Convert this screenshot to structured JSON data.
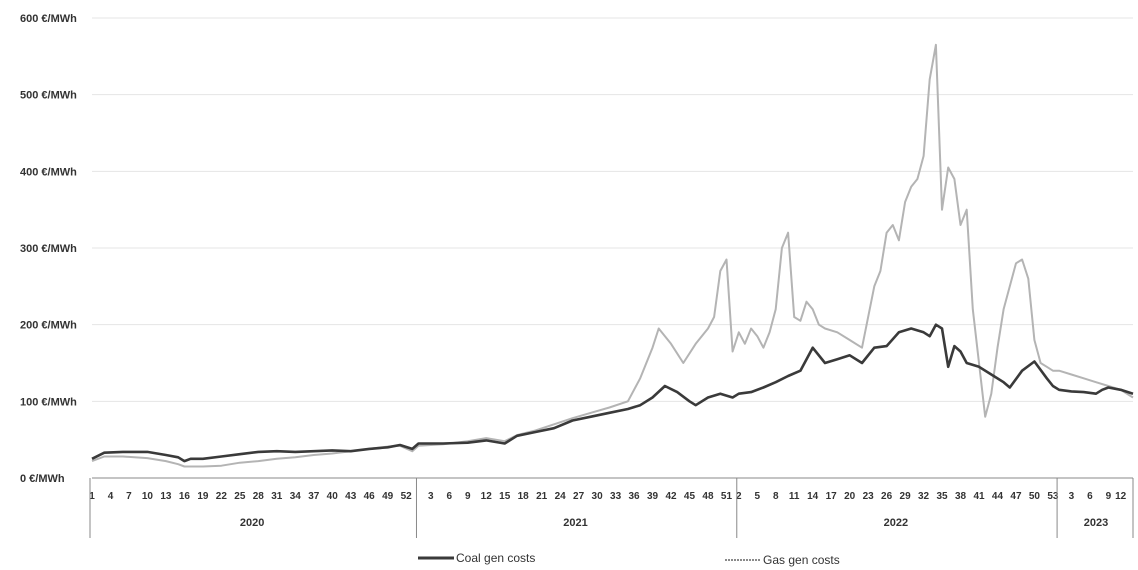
{
  "chart_data": {
    "type": "line",
    "title": "",
    "xlabel": "",
    "ylabel": "",
    "ylim": [
      0,
      600
    ],
    "y_ticks": [
      {
        "value": 0,
        "label": "0 €/MWh"
      },
      {
        "value": 100,
        "label": "100 €/MWh"
      },
      {
        "value": 200,
        "label": "200 €/MWh"
      },
      {
        "value": 300,
        "label": "300 €/MWh"
      },
      {
        "value": 400,
        "label": "400 €/MWh"
      },
      {
        "value": 500,
        "label": "500 €/MWh"
      },
      {
        "value": 600,
        "label": "600 €/MWh"
      }
    ],
    "grid": true,
    "legend_position": "bottom",
    "years": [
      {
        "label": "2020",
        "start": 1,
        "end": 53
      },
      {
        "label": "2021",
        "start": 54,
        "end": 105
      },
      {
        "label": "2022",
        "start": 106,
        "end": 157
      },
      {
        "label": "2023",
        "start": 158,
        "end": 170
      }
    ],
    "x_tick_labels": [
      {
        "x": 1,
        "label": "1"
      },
      {
        "x": 4,
        "label": "4"
      },
      {
        "x": 7,
        "label": "7"
      },
      {
        "x": 10,
        "label": "10"
      },
      {
        "x": 13,
        "label": "13"
      },
      {
        "x": 16,
        "label": "16"
      },
      {
        "x": 19,
        "label": "19"
      },
      {
        "x": 22,
        "label": "22"
      },
      {
        "x": 25,
        "label": "25"
      },
      {
        "x": 28,
        "label": "28"
      },
      {
        "x": 31,
        "label": "31"
      },
      {
        "x": 34,
        "label": "34"
      },
      {
        "x": 37,
        "label": "37"
      },
      {
        "x": 40,
        "label": "40"
      },
      {
        "x": 43,
        "label": "43"
      },
      {
        "x": 46,
        "label": "46"
      },
      {
        "x": 49,
        "label": "49"
      },
      {
        "x": 52,
        "label": "52"
      },
      {
        "x": 56,
        "label": "3"
      },
      {
        "x": 59,
        "label": "6"
      },
      {
        "x": 62,
        "label": "9"
      },
      {
        "x": 65,
        "label": "12"
      },
      {
        "x": 68,
        "label": "15"
      },
      {
        "x": 71,
        "label": "18"
      },
      {
        "x": 74,
        "label": "21"
      },
      {
        "x": 77,
        "label": "24"
      },
      {
        "x": 80,
        "label": "27"
      },
      {
        "x": 83,
        "label": "30"
      },
      {
        "x": 86,
        "label": "33"
      },
      {
        "x": 89,
        "label": "36"
      },
      {
        "x": 92,
        "label": "39"
      },
      {
        "x": 95,
        "label": "42"
      },
      {
        "x": 98,
        "label": "45"
      },
      {
        "x": 101,
        "label": "48"
      },
      {
        "x": 104,
        "label": "51"
      },
      {
        "x": 106,
        "label": "2"
      },
      {
        "x": 109,
        "label": "5"
      },
      {
        "x": 112,
        "label": "8"
      },
      {
        "x": 115,
        "label": "11"
      },
      {
        "x": 118,
        "label": "14"
      },
      {
        "x": 121,
        "label": "17"
      },
      {
        "x": 124,
        "label": "20"
      },
      {
        "x": 127,
        "label": "23"
      },
      {
        "x": 130,
        "label": "26"
      },
      {
        "x": 133,
        "label": "29"
      },
      {
        "x": 136,
        "label": "32"
      },
      {
        "x": 139,
        "label": "35"
      },
      {
        "x": 142,
        "label": "38"
      },
      {
        "x": 145,
        "label": "41"
      },
      {
        "x": 148,
        "label": "44"
      },
      {
        "x": 151,
        "label": "47"
      },
      {
        "x": 154,
        "label": "50"
      },
      {
        "x": 157,
        "label": "53"
      },
      {
        "x": 160,
        "label": "3"
      },
      {
        "x": 163,
        "label": "6"
      },
      {
        "x": 166,
        "label": "9"
      },
      {
        "x": 168,
        "label": "12"
      }
    ],
    "series": [
      {
        "name": "Coal gen costs",
        "color": "#3a3a3a",
        "points": [
          [
            1,
            25
          ],
          [
            3,
            33
          ],
          [
            6,
            34
          ],
          [
            10,
            34
          ],
          [
            13,
            30
          ],
          [
            15,
            27
          ],
          [
            16,
            22
          ],
          [
            17,
            25
          ],
          [
            19,
            25
          ],
          [
            22,
            28
          ],
          [
            25,
            31
          ],
          [
            28,
            34
          ],
          [
            31,
            35
          ],
          [
            34,
            34
          ],
          [
            37,
            35
          ],
          [
            40,
            36
          ],
          [
            43,
            35
          ],
          [
            46,
            38
          ],
          [
            49,
            40
          ],
          [
            51,
            43
          ],
          [
            53,
            38
          ],
          [
            54,
            45
          ],
          [
            58,
            45
          ],
          [
            62,
            46
          ],
          [
            65,
            49
          ],
          [
            68,
            45
          ],
          [
            70,
            55
          ],
          [
            73,
            60
          ],
          [
            76,
            65
          ],
          [
            79,
            75
          ],
          [
            82,
            80
          ],
          [
            85,
            85
          ],
          [
            88,
            90
          ],
          [
            90,
            95
          ],
          [
            92,
            105
          ],
          [
            94,
            120
          ],
          [
            96,
            112
          ],
          [
            98,
            100
          ],
          [
            99,
            95
          ],
          [
            101,
            105
          ],
          [
            103,
            110
          ],
          [
            105,
            105
          ],
          [
            106,
            110
          ],
          [
            108,
            112
          ],
          [
            110,
            118
          ],
          [
            112,
            125
          ],
          [
            114,
            133
          ],
          [
            116,
            140
          ],
          [
            118,
            170
          ],
          [
            120,
            150
          ],
          [
            122,
            155
          ],
          [
            124,
            160
          ],
          [
            126,
            150
          ],
          [
            128,
            170
          ],
          [
            130,
            172
          ],
          [
            132,
            190
          ],
          [
            134,
            195
          ],
          [
            136,
            190
          ],
          [
            137,
            185
          ],
          [
            138,
            200
          ],
          [
            139,
            195
          ],
          [
            140,
            145
          ],
          [
            141,
            172
          ],
          [
            142,
            165
          ],
          [
            143,
            150
          ],
          [
            145,
            145
          ],
          [
            147,
            135
          ],
          [
            149,
            125
          ],
          [
            150,
            118
          ],
          [
            152,
            140
          ],
          [
            154,
            152
          ],
          [
            156,
            130
          ],
          [
            157,
            120
          ],
          [
            158,
            115
          ],
          [
            160,
            113
          ],
          [
            162,
            112
          ],
          [
            164,
            110
          ],
          [
            165,
            115
          ],
          [
            166,
            118
          ],
          [
            168,
            115
          ],
          [
            170,
            110
          ]
        ]
      },
      {
        "name": "Gas gen costs",
        "color": "#b4b4b4",
        "points": [
          [
            1,
            22
          ],
          [
            3,
            28
          ],
          [
            6,
            28
          ],
          [
            10,
            26
          ],
          [
            13,
            22
          ],
          [
            15,
            18
          ],
          [
            16,
            15
          ],
          [
            19,
            15
          ],
          [
            22,
            16
          ],
          [
            25,
            20
          ],
          [
            28,
            22
          ],
          [
            31,
            25
          ],
          [
            34,
            27
          ],
          [
            37,
            30
          ],
          [
            40,
            32
          ],
          [
            43,
            35
          ],
          [
            46,
            38
          ],
          [
            49,
            41
          ],
          [
            51,
            42
          ],
          [
            53,
            35
          ],
          [
            54,
            42
          ],
          [
            58,
            44
          ],
          [
            62,
            48
          ],
          [
            65,
            52
          ],
          [
            68,
            48
          ],
          [
            70,
            56
          ],
          [
            73,
            62
          ],
          [
            76,
            70
          ],
          [
            79,
            78
          ],
          [
            82,
            85
          ],
          [
            85,
            92
          ],
          [
            88,
            100
          ],
          [
            90,
            130
          ],
          [
            92,
            170
          ],
          [
            93,
            195
          ],
          [
            95,
            175
          ],
          [
            97,
            150
          ],
          [
            99,
            175
          ],
          [
            101,
            195
          ],
          [
            102,
            210
          ],
          [
            103,
            270
          ],
          [
            104,
            285
          ],
          [
            105,
            165
          ],
          [
            106,
            190
          ],
          [
            107,
            175
          ],
          [
            108,
            195
          ],
          [
            109,
            185
          ],
          [
            110,
            170
          ],
          [
            111,
            190
          ],
          [
            112,
            220
          ],
          [
            113,
            300
          ],
          [
            114,
            320
          ],
          [
            115,
            210
          ],
          [
            116,
            205
          ],
          [
            117,
            230
          ],
          [
            118,
            220
          ],
          [
            119,
            200
          ],
          [
            120,
            195
          ],
          [
            122,
            190
          ],
          [
            124,
            180
          ],
          [
            126,
            170
          ],
          [
            128,
            250
          ],
          [
            129,
            270
          ],
          [
            130,
            320
          ],
          [
            131,
            330
          ],
          [
            132,
            310
          ],
          [
            133,
            360
          ],
          [
            134,
            380
          ],
          [
            135,
            390
          ],
          [
            136,
            420
          ],
          [
            137,
            520
          ],
          [
            138,
            565
          ],
          [
            139,
            350
          ],
          [
            140,
            405
          ],
          [
            141,
            390
          ],
          [
            142,
            330
          ],
          [
            143,
            350
          ],
          [
            144,
            220
          ],
          [
            145,
            150
          ],
          [
            146,
            80
          ],
          [
            147,
            110
          ],
          [
            148,
            170
          ],
          [
            149,
            220
          ],
          [
            150,
            250
          ],
          [
            151,
            280
          ],
          [
            152,
            285
          ],
          [
            153,
            260
          ],
          [
            154,
            180
          ],
          [
            155,
            150
          ],
          [
            156,
            145
          ],
          [
            157,
            140
          ],
          [
            158,
            140
          ],
          [
            160,
            135
          ],
          [
            162,
            130
          ],
          [
            164,
            125
          ],
          [
            166,
            120
          ],
          [
            168,
            115
          ],
          [
            170,
            105
          ]
        ]
      }
    ]
  }
}
